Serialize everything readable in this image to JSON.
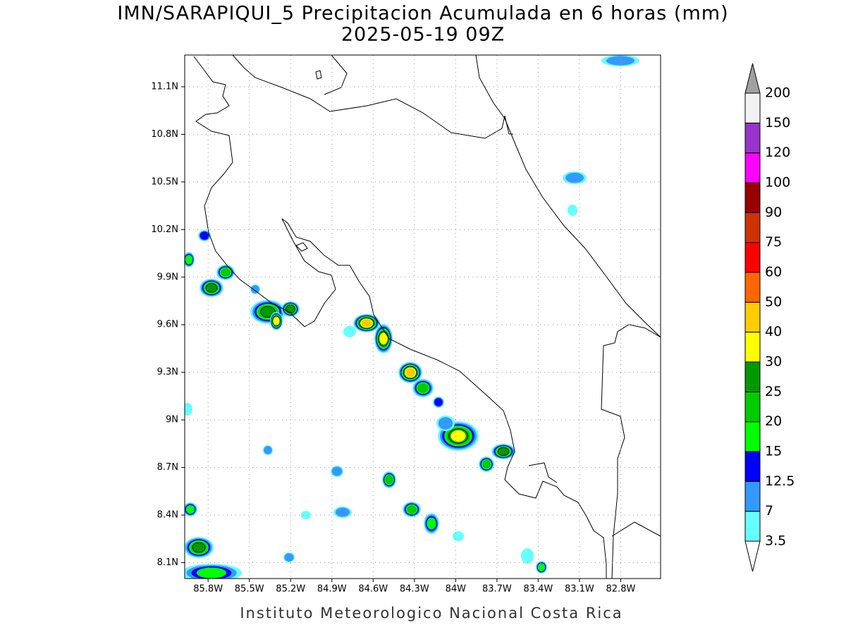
{
  "map": {
    "title": "IMN/SARAPIQUI_5 Precipitacion Acumulada en 6 horas (mm)",
    "subtitle": "2025-05-19 09Z",
    "footer": "Instituto Meteorologico Nacional Costa Rica",
    "xlim": [
      -85.97,
      -82.51
    ],
    "ylim": [
      8.0,
      11.3
    ],
    "xticks": [
      {
        "value": -85.8,
        "label": "85.8W"
      },
      {
        "value": -85.5,
        "label": "85.5W"
      },
      {
        "value": -85.2,
        "label": "85.2W"
      },
      {
        "value": -84.9,
        "label": "84.9W"
      },
      {
        "value": -84.6,
        "label": "84.6W"
      },
      {
        "value": -84.3,
        "label": "84.3W"
      },
      {
        "value": -84.0,
        "label": "84W"
      },
      {
        "value": -83.7,
        "label": "83.7W"
      },
      {
        "value": -83.4,
        "label": "83.4W"
      },
      {
        "value": -83.1,
        "label": "83.1W"
      },
      {
        "value": -82.8,
        "label": "82.8W"
      }
    ],
    "yticks": [
      {
        "value": 11.1,
        "label": "11.1N"
      },
      {
        "value": 10.8,
        "label": "10.8N"
      },
      {
        "value": 10.5,
        "label": "10.5N"
      },
      {
        "value": 10.2,
        "label": "10.2N"
      },
      {
        "value": 9.9,
        "label": "9.9N"
      },
      {
        "value": 9.6,
        "label": "9.6N"
      },
      {
        "value": 9.3,
        "label": "9.3N"
      },
      {
        "value": 9.0,
        "label": "9N"
      },
      {
        "value": 8.7,
        "label": "8.7N"
      },
      {
        "value": 8.4,
        "label": "8.4N"
      },
      {
        "value": 8.1,
        "label": "8.1N"
      }
    ],
    "grid": true,
    "colorbar": {
      "levels": [
        3.5,
        7,
        12.5,
        15,
        20,
        25,
        30,
        40,
        50,
        60,
        75,
        90,
        100,
        120,
        150,
        200
      ],
      "colors": [
        "#66ffff",
        "#3399ff",
        "#0000ff",
        "#00ff00",
        "#00cc00",
        "#009900",
        "#ffff00",
        "#ffcc00",
        "#ff6600",
        "#ff0000",
        "#cc3300",
        "#990000",
        "#ff00ff",
        "#9933cc",
        "#f2f2f2"
      ]
    }
  }
}
